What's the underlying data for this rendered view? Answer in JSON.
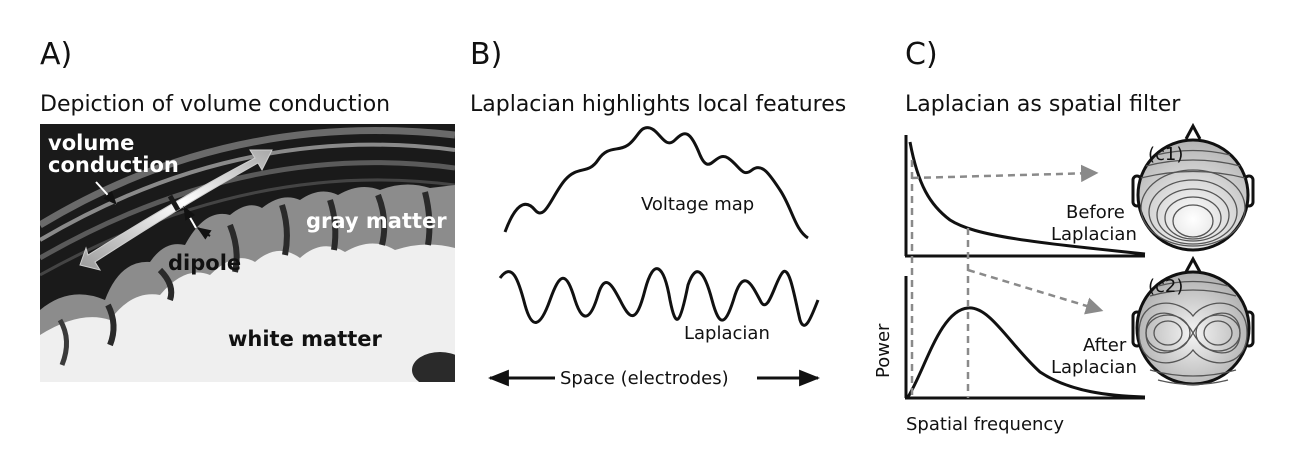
{
  "panels": {
    "a": {
      "letter": "A)",
      "title": "Depiction of volume conduction",
      "labels": {
        "volume_conduction_line1": "volume",
        "volume_conduction_line2": "conduction",
        "gray_matter": "gray matter",
        "dipole": "dipole",
        "white_matter": "white matter"
      }
    },
    "b": {
      "letter": "B)",
      "title": "Laplacian highlights local features",
      "labels": {
        "voltage_map": "Voltage map",
        "laplacian": "Laplacian",
        "space": "Space (electrodes)"
      }
    },
    "c": {
      "letter": "C)",
      "title": "Laplacian as spatial filter",
      "labels": {
        "c1": "(c1)",
        "c2": "(c2)",
        "before_line1": "Before",
        "before_line2": "Laplacian",
        "after_line1": "After",
        "after_line2": "Laplacian",
        "y_axis": "Power",
        "x_axis": "Spatial frequency"
      }
    }
  },
  "colors": {
    "ink": "#111111",
    "dashed_gray": "#8a8a8a",
    "brain_dark": "#1a1a1a",
    "head_fill": "#c9c9c9"
  }
}
